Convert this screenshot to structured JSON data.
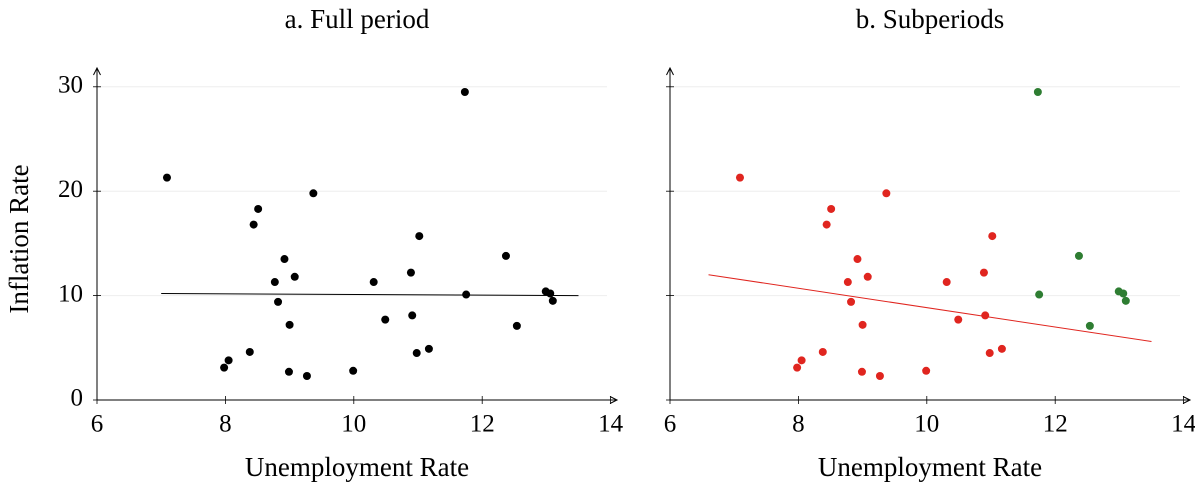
{
  "chart_data": [
    {
      "type": "scatter",
      "title": "a. Full period",
      "xlabel": "Unemployment Rate",
      "ylabel": "Inflation Rate",
      "xlim": [
        6,
        14.1
      ],
      "ylim": [
        0,
        31.8
      ],
      "xticks": [
        6,
        8,
        10,
        12,
        14
      ],
      "yticks": [
        0,
        10,
        20,
        30
      ],
      "ytick_labels": true,
      "grid": true,
      "series": [
        {
          "color": "#000000",
          "x": [
            7.09,
            8.51,
            8.44,
            9.37,
            8.92,
            9.08,
            8.77,
            8.82,
            9.0,
            8.38,
            8.05,
            7.98,
            8.99,
            9.27,
            9.99,
            10.31,
            10.49,
            10.89,
            10.91,
            11.02,
            10.98,
            11.17,
            11.75,
            11.73,
            12.37,
            12.54,
            12.99,
            13.06,
            13.1
          ],
          "values": [
            21.3,
            18.3,
            16.8,
            19.8,
            13.5,
            11.8,
            11.3,
            9.4,
            7.2,
            4.6,
            3.8,
            3.1,
            2.7,
            2.3,
            2.8,
            11.3,
            7.7,
            12.2,
            8.1,
            15.7,
            4.5,
            4.9,
            10.1,
            29.5,
            13.8,
            7.1,
            10.4,
            10.2,
            9.5
          ]
        }
      ],
      "fit": {
        "color": "#000000",
        "x": [
          7.0,
          13.5
        ],
        "values": [
          10.2,
          10.0
        ]
      }
    },
    {
      "type": "scatter",
      "title": "b. Subperiods",
      "xlabel": "Unemployment Rate",
      "xlim": [
        6,
        14.1
      ],
      "ylim": [
        0,
        31.8
      ],
      "xticks": [
        6,
        8,
        10,
        12,
        14
      ],
      "yticks": [
        0,
        10,
        20,
        30
      ],
      "ytick_labels": false,
      "grid": true,
      "series": [
        {
          "color": "#e0251f",
          "x": [
            7.09,
            8.51,
            8.44,
            9.37,
            8.92,
            9.08,
            8.77,
            8.82,
            9.0,
            8.38,
            8.05,
            7.98,
            8.99,
            9.27,
            9.99,
            10.31,
            10.49,
            10.89,
            10.91,
            11.02,
            10.98,
            11.17
          ],
          "values": [
            21.3,
            18.3,
            16.8,
            19.8,
            13.5,
            11.8,
            11.3,
            9.4,
            7.2,
            4.6,
            3.8,
            3.1,
            2.7,
            2.3,
            2.8,
            11.3,
            7.7,
            12.2,
            8.1,
            15.7,
            4.5,
            4.9
          ]
        },
        {
          "color": "#2e7d32",
          "x": [
            11.75,
            11.73,
            12.37,
            12.54,
            12.99,
            13.06,
            13.1
          ],
          "values": [
            10.1,
            29.5,
            13.8,
            7.1,
            10.4,
            10.2,
            9.5
          ]
        }
      ],
      "fit": {
        "color": "#e0251f",
        "x": [
          6.6,
          13.5
        ],
        "values": [
          12.0,
          5.6
        ]
      }
    }
  ]
}
